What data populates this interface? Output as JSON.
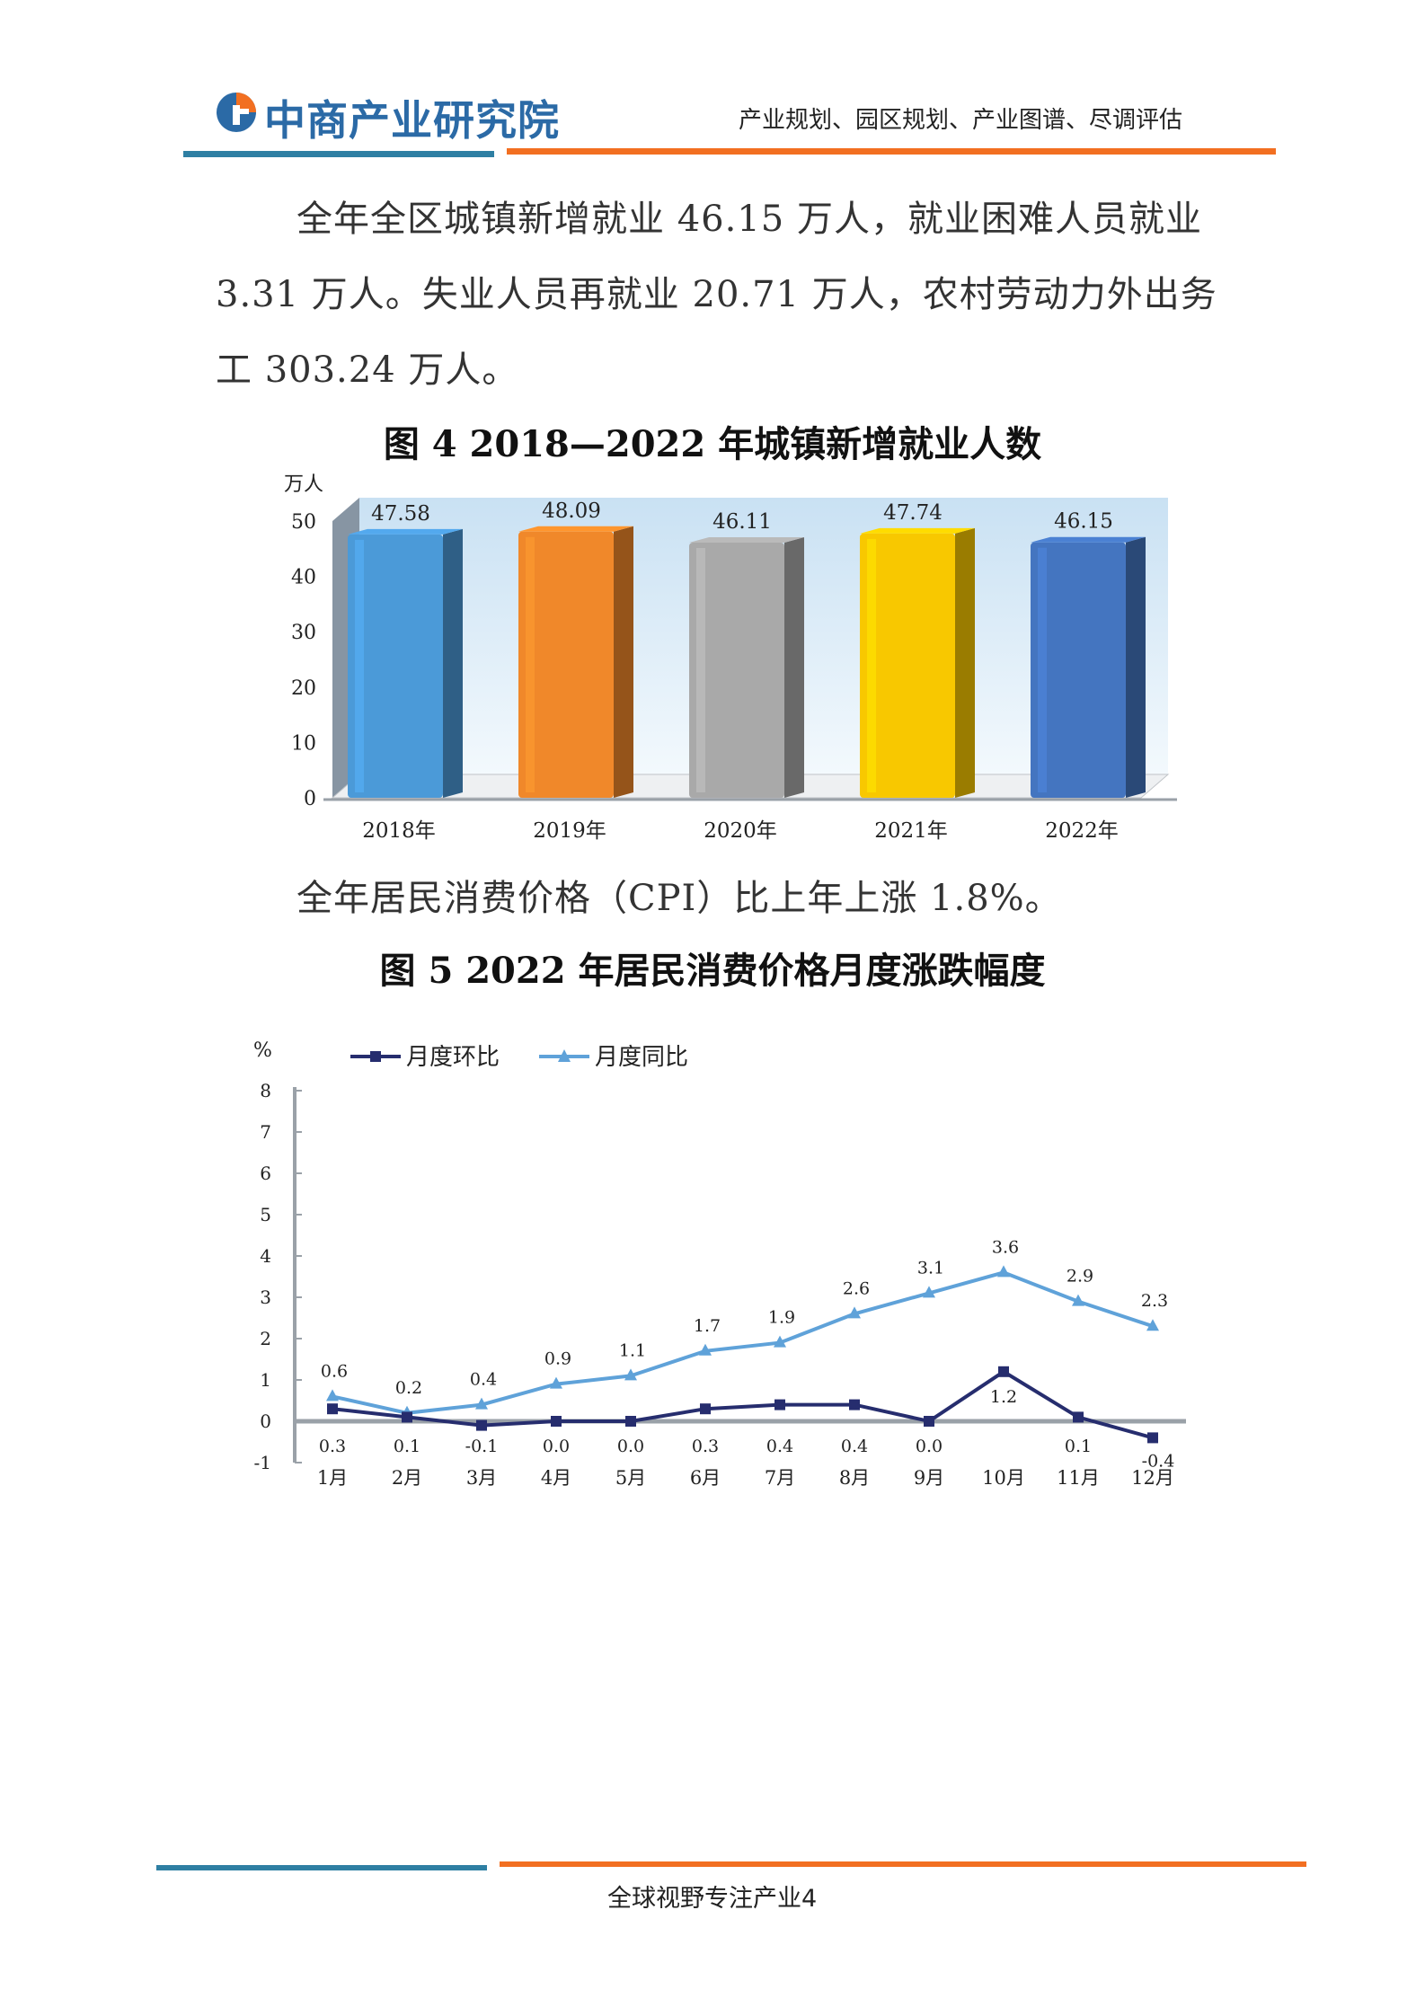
{
  "header": {
    "logo_text": "中商产业研究院",
    "tagline": "产业规划、园区规划、产业图谱、尽调评估",
    "colors": {
      "blue": "#2e7fa3",
      "orange": "#f26f21"
    }
  },
  "paragraph1": {
    "line1": "全年全区城镇新增就业 46.15 万人，就业困难人员就业",
    "line2": "3.31 万人。失业人员再就业 20.71 万人，农村劳动力外出务",
    "line3": "工 303.24 万人。"
  },
  "figure4": {
    "title": "图 4 2018—2022 年城镇新增就业人数"
  },
  "paragraph2": {
    "text": "全年居民消费价格（CPI）比上年上涨 1.8%。"
  },
  "figure5": {
    "title": "图 5 2022 年居民消费价格月度涨跌幅度"
  },
  "footer": {
    "text": "全球视野专注产业4"
  },
  "chart_data": [
    {
      "type": "bar",
      "ylabel": "万人",
      "ylim": [
        0,
        50
      ],
      "yticks": [
        "0",
        "10",
        "20",
        "30",
        "40",
        "50"
      ],
      "categories": [
        "2018年",
        "2019年",
        "2020年",
        "2021年",
        "2022年"
      ],
      "values": [
        47.58,
        48.09,
        46.11,
        47.74,
        46.15
      ],
      "value_labels": [
        "47.58",
        "48.09",
        "46.11",
        "47.74",
        "46.15"
      ],
      "colors": [
        "#4b9ad8",
        "#f0882a",
        "#a9a9a9",
        "#f8c800",
        "#4475c0"
      ]
    },
    {
      "type": "line",
      "ylabel": "%",
      "ylim": [
        -1,
        8
      ],
      "yticks": [
        "-1",
        "0",
        "1",
        "2",
        "3",
        "4",
        "5",
        "6",
        "7",
        "8"
      ],
      "categories": [
        "1月",
        "2月",
        "3月",
        "4月",
        "5月",
        "6月",
        "7月",
        "8月",
        "9月",
        "10月",
        "11月",
        "12月"
      ],
      "series": [
        {
          "name": "月度环比",
          "color": "#262d6e",
          "marker": "square",
          "values": [
            0.3,
            0.1,
            -0.1,
            0.0,
            0.0,
            0.3,
            0.4,
            0.4,
            0.0,
            1.2,
            0.1,
            -0.4
          ],
          "labels": [
            "0.3",
            "0.1",
            "-0.1",
            "0.0",
            "0.0",
            "0.3",
            "0.4",
            "0.4",
            "0.0",
            "1.2",
            "0.1",
            "-0.4"
          ]
        },
        {
          "name": "月度同比",
          "color": "#5fa2d9",
          "marker": "triangle",
          "values": [
            0.6,
            0.2,
            0.4,
            0.9,
            1.1,
            1.7,
            1.9,
            2.6,
            3.1,
            3.6,
            2.9,
            2.3
          ],
          "labels": [
            "0.6",
            "0.2",
            "0.4",
            "0.9",
            "1.1",
            "1.7",
            "1.9",
            "2.6",
            "3.1",
            "3.6",
            "2.9",
            "2.3"
          ]
        }
      ]
    }
  ]
}
